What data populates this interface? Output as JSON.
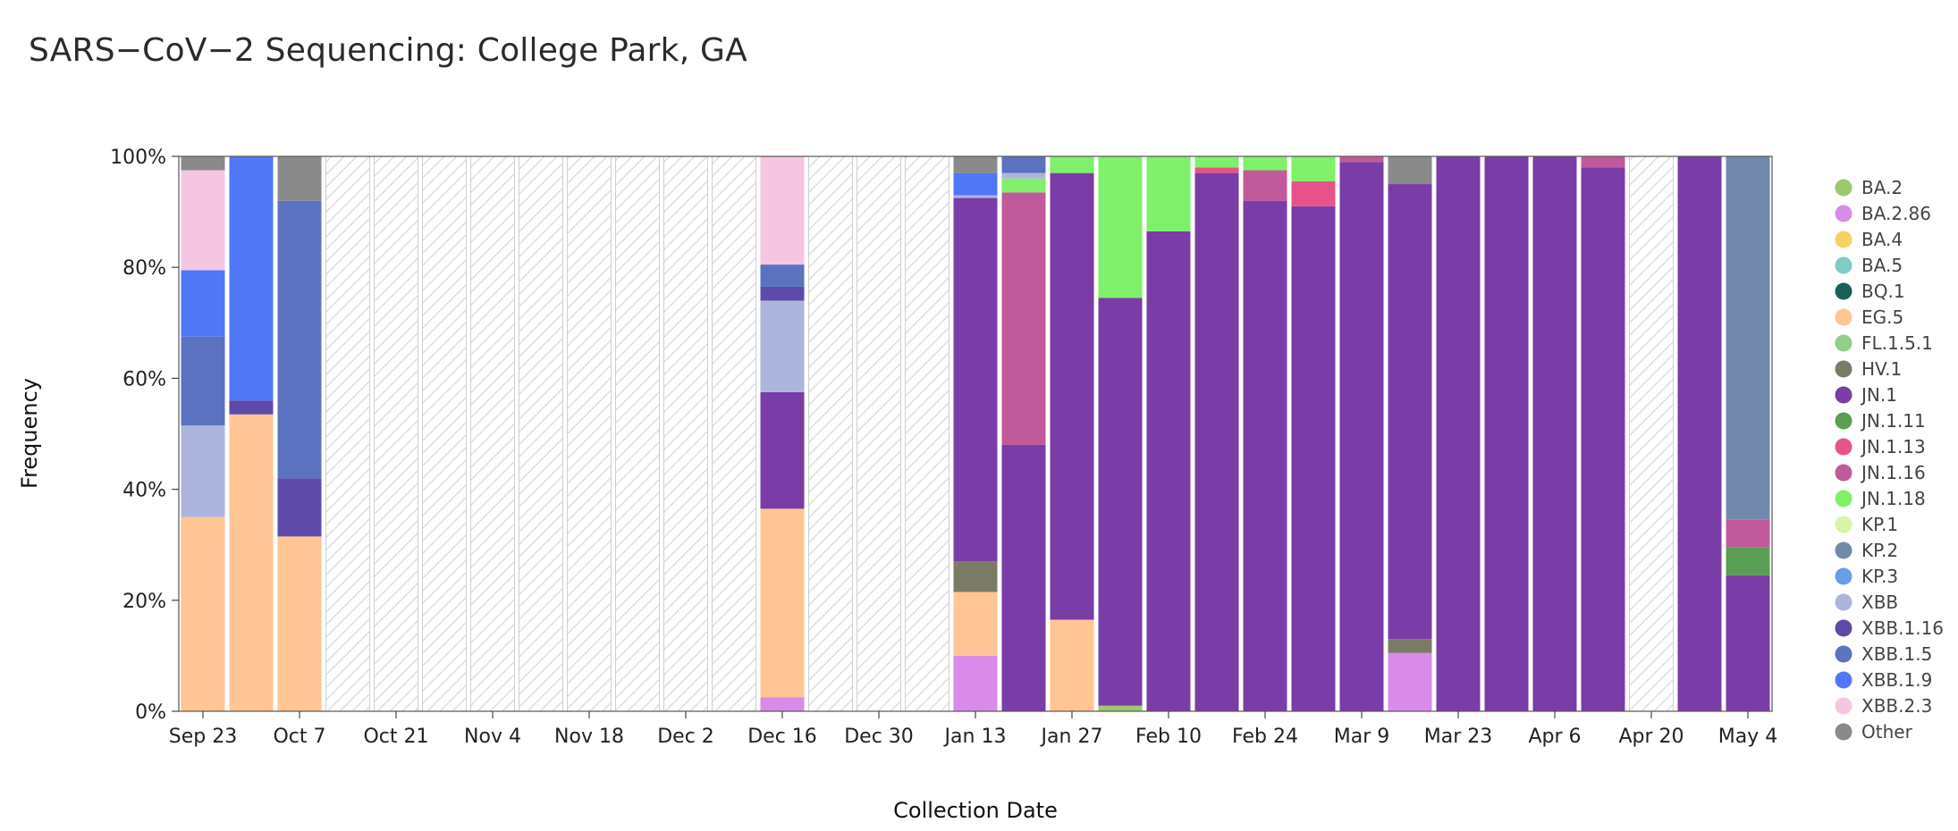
{
  "chart_data": {
    "type": "bar",
    "stacked": true,
    "normalized": true,
    "title": "SARS−CoV−2 Sequencing: College Park, GA",
    "xlabel": "Collection Date",
    "ylabel": "Frequency",
    "ylim": [
      0,
      100
    ],
    "y_ticks": [
      "0%",
      "20%",
      "40%",
      "60%",
      "80%",
      "100%"
    ],
    "x_tick_labels": [
      "Sep 23",
      "Oct 7",
      "Oct 21",
      "Nov 4",
      "Nov 18",
      "Dec 2",
      "Dec 16",
      "Dec 30",
      "Jan 13",
      "Jan 27",
      "Feb 10",
      "Feb 24",
      "Mar 9",
      "Mar 23",
      "Apr 6",
      "Apr 20",
      "May 4"
    ],
    "no_data_pattern": "hatched",
    "legend_position": "right",
    "lineages": [
      {
        "name": "BA.2",
        "color": "#9dc86b"
      },
      {
        "name": "BA.2.86",
        "color": "#d98be8"
      },
      {
        "name": "BA.4",
        "color": "#f7d063"
      },
      {
        "name": "BA.5",
        "color": "#80cbc4"
      },
      {
        "name": "BQ.1",
        "color": "#1b5e5a"
      },
      {
        "name": "EG.5",
        "color": "#ffc594"
      },
      {
        "name": "FL.1.5.1",
        "color": "#8fcf86"
      },
      {
        "name": "HV.1",
        "color": "#7b7a66"
      },
      {
        "name": "JN.1",
        "color": "#7a3ca6"
      },
      {
        "name": "JN.1.11",
        "color": "#5c9e54"
      },
      {
        "name": "JN.1.13",
        "color": "#e8528a"
      },
      {
        "name": "JN.1.16",
        "color": "#c05a9a"
      },
      {
        "name": "JN.1.18",
        "color": "#7ff06a"
      },
      {
        "name": "KP.1",
        "color": "#d8f5a8"
      },
      {
        "name": "KP.2",
        "color": "#7289ad"
      },
      {
        "name": "KP.3",
        "color": "#6a9de8"
      },
      {
        "name": "XBB",
        "color": "#adb5dc"
      },
      {
        "name": "XBB.1.16",
        "color": "#5e4aa8"
      },
      {
        "name": "XBB.1.5",
        "color": "#5b72c0"
      },
      {
        "name": "XBB.1.9",
        "color": "#5077f5"
      },
      {
        "name": "XBB.2.3",
        "color": "#f5c6e2"
      },
      {
        "name": "Other",
        "color": "#8a8a8a"
      }
    ],
    "weeks": [
      {
        "week": "Sep 23",
        "segments": [
          {
            "lineage": "EG.5",
            "value": 35
          },
          {
            "lineage": "XBB",
            "value": 16.5
          },
          {
            "lineage": "XBB.1.5",
            "value": 16
          },
          {
            "lineage": "XBB.1.9",
            "value": 12
          },
          {
            "lineage": "XBB.2.3",
            "value": 18
          },
          {
            "lineage": "Other",
            "value": 2.5
          }
        ]
      },
      {
        "week": "Sep 30",
        "segments": [
          {
            "lineage": "EG.5",
            "value": 53.5
          },
          {
            "lineage": "XBB.1.16",
            "value": 2.5
          },
          {
            "lineage": "XBB.1.9",
            "value": 44
          }
        ]
      },
      {
        "week": "Oct 7",
        "segments": [
          {
            "lineage": "EG.5",
            "value": 31.5
          },
          {
            "lineage": "XBB.1.16",
            "value": 10.5
          },
          {
            "lineage": "XBB.1.5",
            "value": 50
          },
          {
            "lineage": "Other",
            "value": 8
          }
        ]
      },
      {
        "week": "Oct 14",
        "segments": []
      },
      {
        "week": "Oct 21",
        "segments": []
      },
      {
        "week": "Oct 28",
        "segments": []
      },
      {
        "week": "Nov 4",
        "segments": []
      },
      {
        "week": "Nov 11",
        "segments": []
      },
      {
        "week": "Nov 18",
        "segments": []
      },
      {
        "week": "Nov 25",
        "segments": []
      },
      {
        "week": "Dec 2",
        "segments": []
      },
      {
        "week": "Dec 9",
        "segments": []
      },
      {
        "week": "Dec 16",
        "segments": [
          {
            "lineage": "BA.2.86",
            "value": 2.5
          },
          {
            "lineage": "EG.5",
            "value": 34
          },
          {
            "lineage": "JN.1",
            "value": 21
          },
          {
            "lineage": "XBB",
            "value": 16.5
          },
          {
            "lineage": "XBB.1.16",
            "value": 2.5
          },
          {
            "lineage": "XBB.1.5",
            "value": 4
          },
          {
            "lineage": "XBB.2.3",
            "value": 19.5
          }
        ]
      },
      {
        "week": "Dec 23",
        "segments": []
      },
      {
        "week": "Dec 30",
        "segments": []
      },
      {
        "week": "Jan 6",
        "segments": []
      },
      {
        "week": "Jan 13",
        "segments": [
          {
            "lineage": "BA.2.86",
            "value": 10
          },
          {
            "lineage": "EG.5",
            "value": 11.5
          },
          {
            "lineage": "HV.1",
            "value": 5.5
          },
          {
            "lineage": "JN.1",
            "value": 65.5
          },
          {
            "lineage": "XBB",
            "value": 0.5
          },
          {
            "lineage": "XBB.1.9",
            "value": 4
          },
          {
            "lineage": "Other",
            "value": 3
          }
        ]
      },
      {
        "week": "Jan 20",
        "segments": [
          {
            "lineage": "JN.1",
            "value": 48
          },
          {
            "lineage": "JN.1.16",
            "value": 45.5
          },
          {
            "lineage": "JN.1.18",
            "value": 2.5
          },
          {
            "lineage": "XBB",
            "value": 1
          },
          {
            "lineage": "XBB.1.5",
            "value": 3
          }
        ]
      },
      {
        "week": "Jan 27",
        "segments": [
          {
            "lineage": "EG.5",
            "value": 16.5
          },
          {
            "lineage": "JN.1",
            "value": 80.5
          },
          {
            "lineage": "JN.1.18",
            "value": 3
          }
        ]
      },
      {
        "week": "Feb 3",
        "segments": [
          {
            "lineage": "BA.2",
            "value": 1
          },
          {
            "lineage": "JN.1",
            "value": 73.5
          },
          {
            "lineage": "JN.1.18",
            "value": 25.5
          }
        ]
      },
      {
        "week": "Feb 10",
        "segments": [
          {
            "lineage": "JN.1",
            "value": 86.5
          },
          {
            "lineage": "JN.1.18",
            "value": 13.5
          }
        ]
      },
      {
        "week": "Feb 17",
        "segments": [
          {
            "lineage": "JN.1",
            "value": 97
          },
          {
            "lineage": "JN.1.13",
            "value": 1
          },
          {
            "lineage": "JN.1.18",
            "value": 2
          }
        ]
      },
      {
        "week": "Feb 24",
        "segments": [
          {
            "lineage": "JN.1",
            "value": 92
          },
          {
            "lineage": "JN.1.16",
            "value": 5.5
          },
          {
            "lineage": "JN.1.18",
            "value": 2.5
          }
        ]
      },
      {
        "week": "Mar 2",
        "segments": [
          {
            "lineage": "JN.1",
            "value": 91
          },
          {
            "lineage": "JN.1.13",
            "value": 4.5
          },
          {
            "lineage": "JN.1.18",
            "value": 4.5
          }
        ]
      },
      {
        "week": "Mar 9",
        "segments": [
          {
            "lineage": "JN.1",
            "value": 99
          },
          {
            "lineage": "JN.1.16",
            "value": 1
          }
        ]
      },
      {
        "week": "Mar 16",
        "segments": [
          {
            "lineage": "BA.2.86",
            "value": 10.5
          },
          {
            "lineage": "HV.1",
            "value": 2.5
          },
          {
            "lineage": "JN.1",
            "value": 82
          },
          {
            "lineage": "Other",
            "value": 5
          }
        ]
      },
      {
        "week": "Mar 23",
        "segments": [
          {
            "lineage": "JN.1",
            "value": 100
          }
        ]
      },
      {
        "week": "Mar 30",
        "segments": [
          {
            "lineage": "JN.1",
            "value": 100
          }
        ]
      },
      {
        "week": "Apr 6",
        "segments": [
          {
            "lineage": "JN.1",
            "value": 100
          }
        ]
      },
      {
        "week": "Apr 13",
        "segments": [
          {
            "lineage": "JN.1",
            "value": 98
          },
          {
            "lineage": "JN.1.16",
            "value": 2
          }
        ]
      },
      {
        "week": "Apr 20",
        "segments": []
      },
      {
        "week": "Apr 27",
        "segments": [
          {
            "lineage": "JN.1",
            "value": 100
          }
        ]
      },
      {
        "week": "May 4",
        "segments": [
          {
            "lineage": "JN.1",
            "value": 24.5
          },
          {
            "lineage": "JN.1.11",
            "value": 5
          },
          {
            "lineage": "JN.1.16",
            "value": 5
          },
          {
            "lineage": "KP.2",
            "value": 65.5
          }
        ]
      }
    ]
  }
}
